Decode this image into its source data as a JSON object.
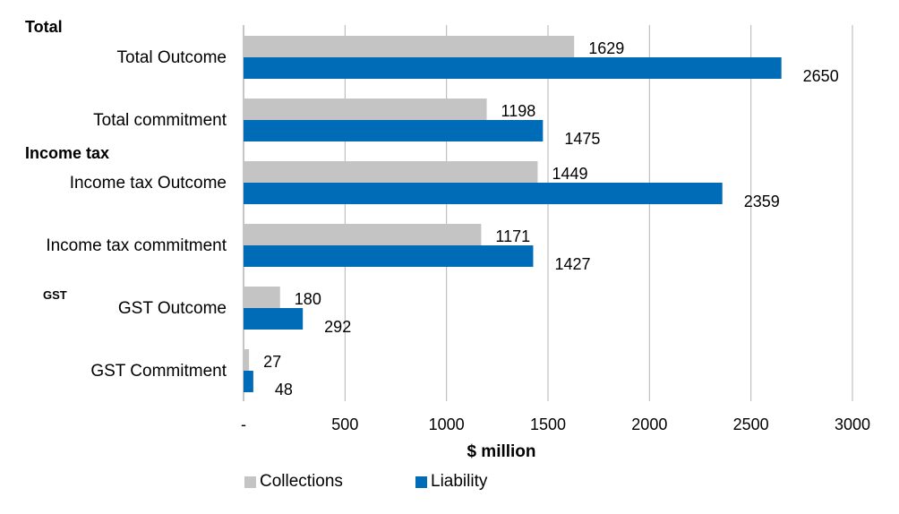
{
  "chart_data": {
    "type": "bar",
    "orientation": "horizontal",
    "categories": [
      "Total Outcome",
      "Total commitment",
      "Income tax Outcome",
      "Income tax commitment",
      "GST Outcome",
      "GST Commitment"
    ],
    "groups": [
      {
        "label": "Total",
        "categories": [
          "Total Outcome",
          "Total commitment"
        ]
      },
      {
        "label": "Income tax",
        "categories": [
          "Income tax Outcome",
          "Income tax commitment"
        ]
      },
      {
        "label": "GST",
        "categories": [
          "GST Outcome",
          "GST Commitment"
        ]
      }
    ],
    "series": [
      {
        "name": "Collections",
        "color": "#c4c4c4",
        "values": [
          1629,
          1198,
          1449,
          1171,
          180,
          27
        ]
      },
      {
        "name": "Liability",
        "color": "#006bb6",
        "values": [
          2650,
          1475,
          2359,
          1427,
          292,
          48
        ]
      }
    ],
    "xlabel": "$ million",
    "xlim": [
      0,
      3000
    ],
    "x_ticks": [
      "-",
      "500",
      "1000",
      "1500",
      "2000",
      "2500",
      "3000"
    ],
    "tick_values": [
      0,
      500,
      1000,
      1500,
      2000,
      2500,
      3000
    ],
    "grid": "vertical",
    "legend_position": "bottom"
  }
}
